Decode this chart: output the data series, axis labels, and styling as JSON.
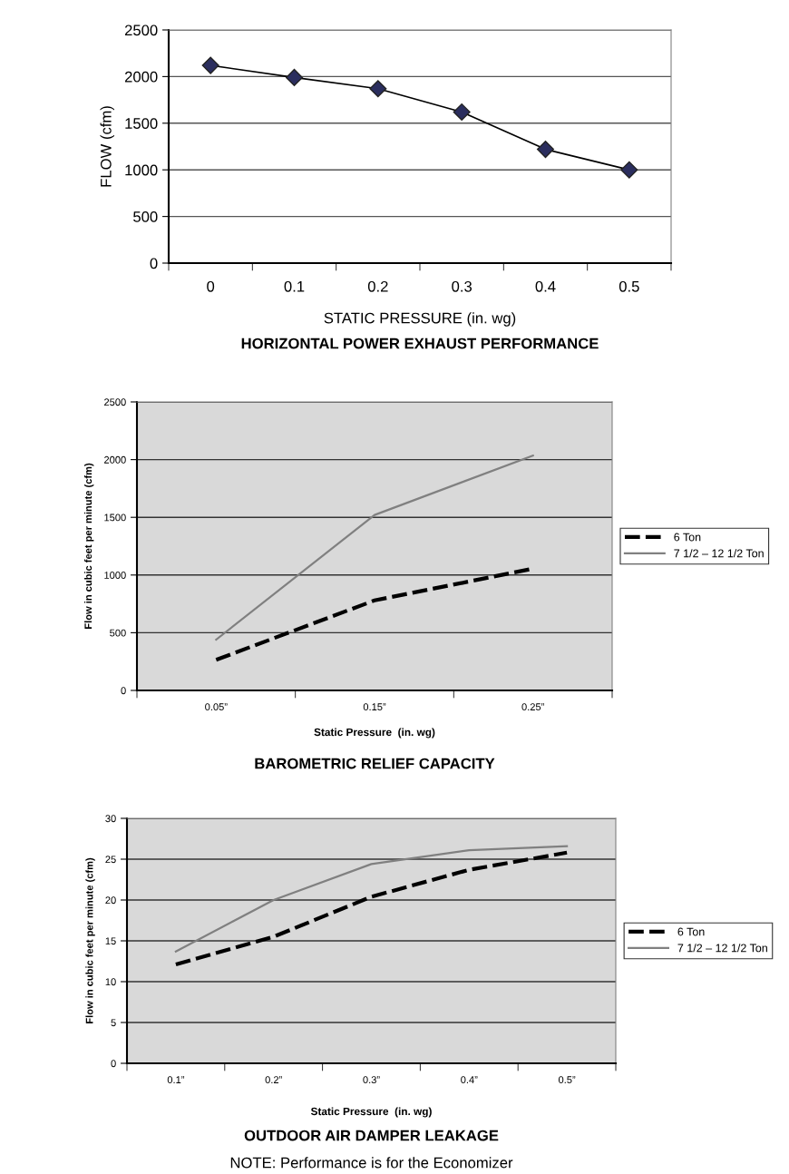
{
  "chart_data": [
    {
      "type": "line",
      "title": "HORIZONTAL POWER EXHAUST PERFORMANCE",
      "xlabel": "STATIC PRESSURE (in. wg)",
      "ylabel": "FLOW (cfm)",
      "categories": [
        "0",
        "0.1",
        "0.2",
        "0.3",
        "0.4",
        "0.5"
      ],
      "marker": "diamond",
      "ylim": [
        0,
        2500
      ],
      "yticks": [
        0,
        500,
        1000,
        1500,
        2000,
        2500
      ],
      "grid": "y",
      "legend": false,
      "series": [
        {
          "color": "#2b2e5e",
          "values": [
            2120,
            1990,
            1870,
            1620,
            1220,
            1000
          ]
        }
      ]
    },
    {
      "type": "line",
      "title": "BAROMETRIC RELIEF CAPACITY",
      "xlabel": "Static Pressure  (in. wg)",
      "ylabel": "Flow in cubic feet per minute (cfm)",
      "categories": [
        "0.05”",
        "0.15”",
        "0.25”"
      ],
      "ylim": [
        0,
        2500
      ],
      "yticks": [
        0,
        500,
        1000,
        1500,
        2000,
        2500
      ],
      "grid": "y",
      "legend": "right",
      "series": [
        {
          "name": "6 Ton",
          "color": "#000000",
          "line_style": "dashed",
          "values": [
            265,
            780,
            1055
          ]
        },
        {
          "name": "7 1/2 – 12 1/2 Ton",
          "color": "#808080",
          "line_style": "solid",
          "values": [
            440,
            1520,
            2035
          ]
        }
      ]
    },
    {
      "type": "line",
      "title": "OUTDOOR AIR DAMPER LEAKAGE",
      "xlabel": "Static Pressure  (in. wg)",
      "ylabel": "Flow in cubic feet per minute (cfm)",
      "categories": [
        "0.1”",
        "0.2”",
        "0.3”",
        "0.4”",
        "0.5”"
      ],
      "ylim": [
        0,
        30
      ],
      "yticks": [
        0,
        5,
        10,
        15,
        20,
        25,
        30
      ],
      "grid": "y",
      "legend": "right",
      "annotations": [
        "NOTE: Performance is for the Economizer"
      ],
      "series": [
        {
          "name": "6 Ton",
          "color": "#000000",
          "line_style": "dashed",
          "values": [
            12.1,
            15.5,
            20.4,
            23.7,
            25.8
          ]
        },
        {
          "name": "7 1/2 – 12 1/2 Ton",
          "color": "#808080",
          "line_style": "solid",
          "values": [
            13.7,
            20.0,
            24.4,
            26.1,
            26.6
          ]
        }
      ]
    }
  ]
}
